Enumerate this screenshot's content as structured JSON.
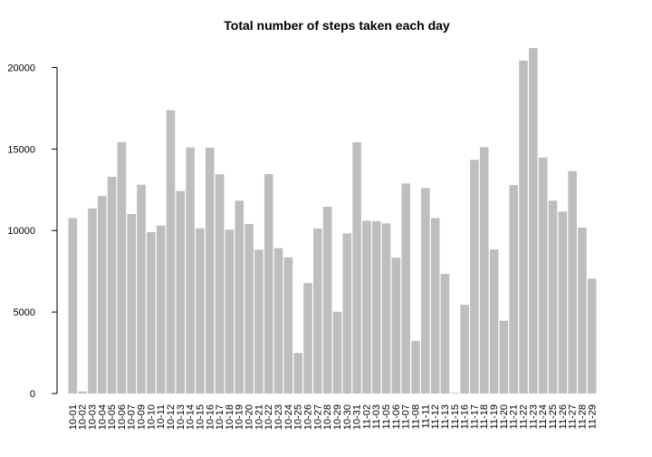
{
  "chart_data": {
    "type": "bar",
    "title": "Total number of steps taken each day",
    "xlabel": "",
    "ylabel": "",
    "ylim": [
      0,
      21194
    ],
    "yticks": [
      0,
      5000,
      10000,
      15000,
      20000
    ],
    "bar_color": "#bebebe",
    "grid": false,
    "categories": [
      "10-01",
      "10-02",
      "10-03",
      "10-04",
      "10-05",
      "10-06",
      "10-07",
      "10-09",
      "10-10",
      "10-11",
      "10-12",
      "10-13",
      "10-14",
      "10-15",
      "10-16",
      "10-17",
      "10-18",
      "10-19",
      "10-20",
      "10-21",
      "10-22",
      "10-23",
      "10-24",
      "10-25",
      "10-26",
      "10-27",
      "10-28",
      "10-29",
      "10-30",
      "10-31",
      "11-02",
      "11-03",
      "11-05",
      "11-06",
      "11-07",
      "11-08",
      "11-11",
      "11-12",
      "11-13",
      "11-15",
      "11-16",
      "11-17",
      "11-18",
      "11-19",
      "11-20",
      "11-21",
      "11-22",
      "11-23",
      "11-24",
      "11-25",
      "11-26",
      "11-27",
      "11-28",
      "11-29"
    ],
    "values": [
      10766,
      126,
      11352,
      12116,
      13294,
      15420,
      11015,
      12811,
      9900,
      10304,
      17382,
      12426,
      15098,
      10139,
      15084,
      13452,
      10056,
      11829,
      10395,
      8821,
      13460,
      8918,
      8355,
      2492,
      6778,
      10119,
      11458,
      5018,
      9819,
      15414,
      10600,
      10571,
      10439,
      8334,
      12883,
      3219,
      12608,
      10765,
      7336,
      41,
      5441,
      14339,
      15110,
      8841,
      4472,
      12787,
      20427,
      21194,
      14478,
      11834,
      11162,
      13646,
      10183,
      7047
    ]
  }
}
